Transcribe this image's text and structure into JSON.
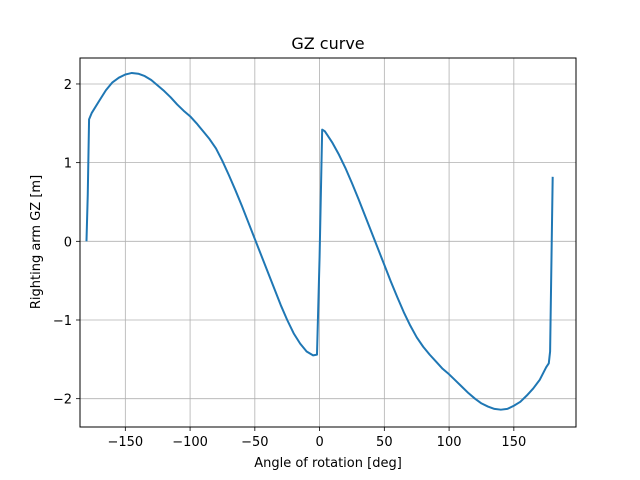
{
  "chart_data": {
    "type": "line",
    "title": "GZ curve",
    "xlabel": "Angle of rotation [deg]",
    "ylabel": "Righting arm GZ [m]",
    "xlim": [
      -185,
      198
    ],
    "ylim": [
      -2.36,
      2.33
    ],
    "xticks": [
      -150,
      -100,
      -50,
      0,
      50,
      100,
      150
    ],
    "xtick_labels": [
      "−150",
      "−100",
      "−50",
      "0",
      "50",
      "100",
      "150"
    ],
    "yticks": [
      -2,
      -1,
      0,
      1,
      2
    ],
    "ytick_labels": [
      "−2",
      "−1",
      "0",
      "1",
      "2"
    ],
    "grid": true,
    "line_color": "#1f77b4",
    "grid_color": "#b0b0b0",
    "series": [
      {
        "x": [
          -180,
          -179,
          -178,
          -176,
          -170,
          -165,
          -160,
          -155,
          -150,
          -145,
          -140,
          -135,
          -130,
          -125,
          -120,
          -115,
          -110,
          -105,
          -100,
          -95,
          -90,
          -85,
          -80,
          -75,
          -70,
          -65,
          -60,
          -55,
          -50,
          -45,
          -40,
          -35,
          -30,
          -25,
          -20,
          -15,
          -10,
          -5,
          -2,
          0,
          2,
          4,
          6,
          10,
          15,
          20,
          25,
          30,
          35,
          40,
          45,
          50,
          55,
          60,
          65,
          70,
          75,
          80,
          85,
          90,
          95,
          100,
          105,
          110,
          115,
          120,
          125,
          130,
          135,
          140,
          145,
          150,
          155,
          160,
          165,
          170,
          175,
          177,
          178,
          180
        ],
        "y": [
          0.0,
          0.6,
          1.55,
          1.63,
          1.79,
          1.92,
          2.02,
          2.08,
          2.12,
          2.14,
          2.13,
          2.1,
          2.05,
          1.98,
          1.91,
          1.83,
          1.74,
          1.66,
          1.59,
          1.5,
          1.4,
          1.3,
          1.18,
          1.02,
          0.84,
          0.65,
          0.45,
          0.24,
          0.03,
          -0.18,
          -0.39,
          -0.6,
          -0.81,
          -1.0,
          -1.17,
          -1.3,
          -1.4,
          -1.45,
          -1.44,
          -0.2,
          1.42,
          1.4,
          1.35,
          1.25,
          1.1,
          0.93,
          0.74,
          0.54,
          0.33,
          0.12,
          -0.09,
          -0.3,
          -0.51,
          -0.71,
          -0.9,
          -1.07,
          -1.22,
          -1.34,
          -1.44,
          -1.53,
          -1.62,
          -1.69,
          -1.77,
          -1.85,
          -1.93,
          -2.0,
          -2.06,
          -2.1,
          -2.13,
          -2.14,
          -2.13,
          -2.09,
          -2.04,
          -1.96,
          -1.87,
          -1.76,
          -1.6,
          -1.55,
          -1.4,
          0.82
        ]
      }
    ]
  }
}
